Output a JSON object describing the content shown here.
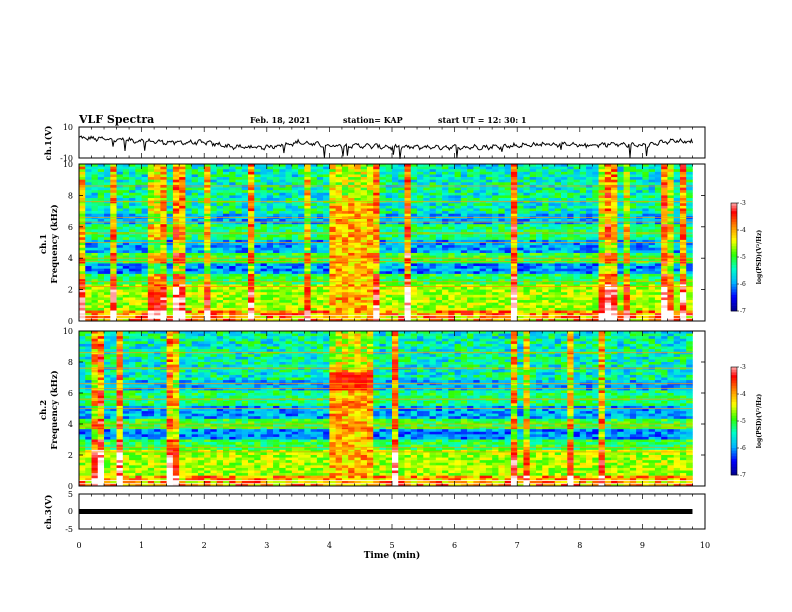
{
  "header": {
    "title": "VLF Spectra",
    "date": "Feb. 18, 2021",
    "station": "station= KAP",
    "start": "start  UT  =   12: 30: 1"
  },
  "chart_data": [
    {
      "type": "line",
      "panel": "ch1_waveform",
      "ylabel": "ch.1(V)",
      "ylim": [
        -10,
        10
      ],
      "y_ticks": [
        "10",
        "-10"
      ],
      "x": [
        0,
        0.5,
        1,
        1.5,
        2,
        2.5,
        3,
        3.5,
        4,
        4.5,
        5,
        5.5,
        6,
        6.5,
        7,
        7.5,
        8,
        8.5,
        9,
        9.5,
        9.8
      ],
      "values": [
        3,
        2,
        1,
        0,
        0,
        -3,
        -3,
        0,
        -2,
        -2,
        -3,
        -3,
        -3,
        -3,
        -2,
        -1,
        -2,
        -1,
        -2,
        1,
        0
      ]
    },
    {
      "type": "heatmap",
      "panel": "ch1_spectrogram",
      "ylabel": "Frequency (kHz)",
      "channel_label": "ch.1",
      "ylim": [
        0,
        10
      ],
      "y_ticks": [
        "0",
        "2",
        "4",
        "6",
        "8",
        "10"
      ],
      "xlim": [
        0,
        10
      ],
      "x_data_end": 9.8,
      "colorbar": {
        "label": "log(PSD)(V²/Hz)",
        "range": [
          -7,
          -3
        ],
        "ticks": [
          "-3",
          "-4",
          "-5",
          "-6",
          "-7"
        ]
      }
    },
    {
      "type": "heatmap",
      "panel": "ch2_spectrogram",
      "ylabel": "Frequency (kHz)",
      "channel_label": "ch.2",
      "ylim": [
        0,
        10
      ],
      "y_ticks": [
        "0",
        "2",
        "4",
        "6",
        "8",
        "10"
      ],
      "xlim": [
        0,
        10
      ],
      "x_data_end": 9.8,
      "colorbar": {
        "label": "log(PSD)(V²/Hz)",
        "range": [
          -7,
          -3
        ],
        "ticks": [
          "-3",
          "-4",
          "-5",
          "-6",
          "-7"
        ]
      }
    },
    {
      "type": "line",
      "panel": "ch3_waveform",
      "ylabel": "ch.3(V)",
      "ylim": [
        -5,
        5
      ],
      "y_ticks": [
        "5",
        "0",
        "-5"
      ],
      "x": [
        0,
        9.8
      ],
      "values": [
        0,
        0
      ]
    }
  ],
  "xaxis": {
    "label": "Time  (min)",
    "range": [
      0,
      10
    ],
    "ticks": [
      "0",
      "1",
      "2",
      "3",
      "4",
      "5",
      "6",
      "7",
      "8",
      "9",
      "10"
    ]
  },
  "colors": {
    "colormap": [
      "#00008b",
      "#0000ff",
      "#00b4ff",
      "#00ffc8",
      "#32ff00",
      "#ffff00",
      "#ff8c00",
      "#ff0000",
      "#ffffff"
    ],
    "trace": "#000000",
    "frame": "#000000"
  }
}
